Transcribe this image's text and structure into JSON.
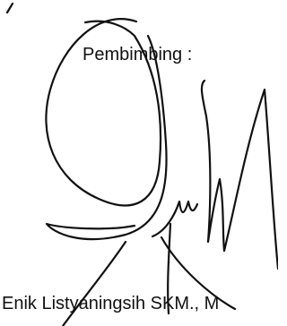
{
  "heading": {
    "label": "Pembimbing :"
  },
  "signer": {
    "name": "Enik Listyaningsih SKM., M"
  }
}
